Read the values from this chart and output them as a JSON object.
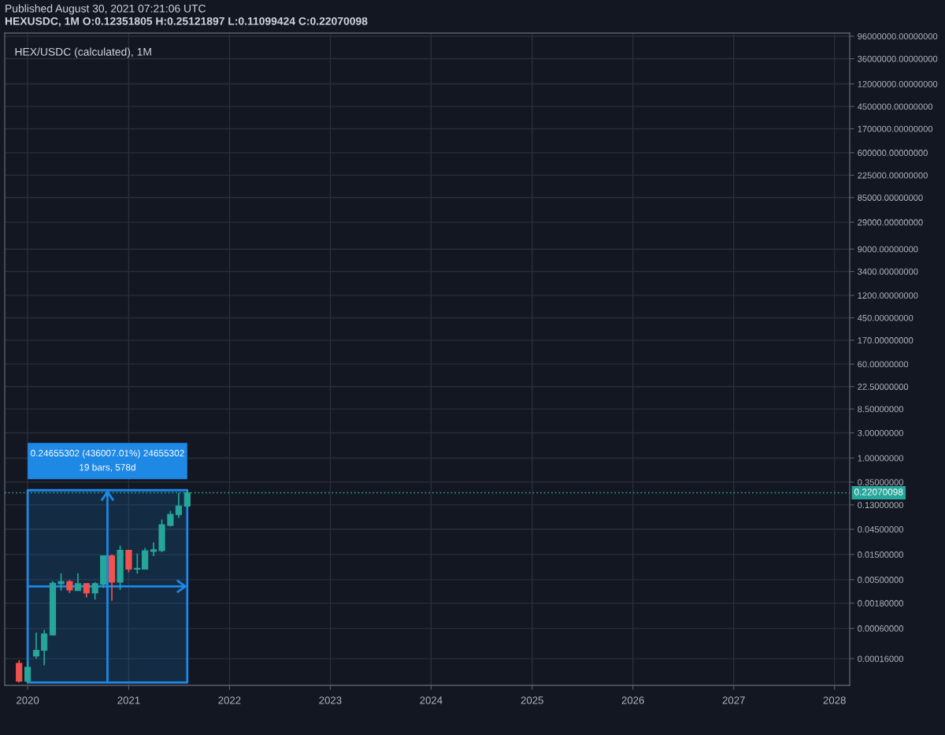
{
  "chart_data": {
    "type": "candlestick",
    "title": "HEX/USDC (calculated), 1M",
    "annotations": [
      "Published August 30, 2021 07:21:06 UTC",
      "HEXUSDC, 1M O:0.12351805 H:0.25121897 L:0.11099424 C:0.22070098",
      "0.24655302 (436007.01%) 24655302"
    ],
    "x": [
      "2019-12",
      "2020-01",
      "2020-02",
      "2020-03",
      "2020-04",
      "2020-05",
      "2020-06",
      "2020-07",
      "2020-08",
      "2020-09",
      "2020-10",
      "2020-11",
      "2020-12",
      "2021-01",
      "2021-02",
      "2021-03",
      "2021-04",
      "2021-05",
      "2021-06",
      "2021-07",
      "2021-08"
    ],
    "ohlc": [
      [
        0.00013,
        0.00015,
        5.65e-05,
        6e-05
      ],
      [
        6e-05,
        0.00014,
        5.7e-05,
        0.00011
      ],
      [
        0.00018,
        0.0005,
        0.00016,
        0.00023
      ],
      [
        0.00023,
        0.00056,
        0.00012,
        0.00047
      ],
      [
        0.00045,
        0.0047,
        0.00044,
        0.0043
      ],
      [
        0.0042,
        0.0066,
        0.0031,
        0.0046
      ],
      [
        0.0046,
        0.0049,
        0.0028,
        0.0032
      ],
      [
        0.0031,
        0.0066,
        0.0031,
        0.0042
      ],
      [
        0.0042,
        0.0043,
        0.0023,
        0.0028
      ],
      [
        0.0028,
        0.0045,
        0.0021,
        0.0042
      ],
      [
        0.0041,
        0.0142,
        0.0035,
        0.0141
      ],
      [
        0.0141,
        0.0151,
        0.002,
        0.0045
      ],
      [
        0.0045,
        0.022,
        0.0032,
        0.018
      ],
      [
        0.018,
        0.018,
        0.0069,
        0.0079
      ],
      [
        0.0079,
        0.0156,
        0.0065,
        0.0082
      ],
      [
        0.0079,
        0.02,
        0.0079,
        0.0176
      ],
      [
        0.0172,
        0.0253,
        0.0139,
        0.0184
      ],
      [
        0.0178,
        0.069,
        0.0166,
        0.0547
      ],
      [
        0.053,
        0.1,
        0.0505,
        0.0856
      ],
      [
        0.085,
        0.22,
        0.0736,
        0.1235
      ],
      [
        0.12351805,
        0.25121897,
        0.11099424,
        0.22070098
      ]
    ],
    "colors": [
      "#ef5350",
      "#26a69a",
      "#26a69a",
      "#26a69a",
      "#26a69a",
      "#26a69a",
      "#ef5350",
      "#26a69a",
      "#ef5350",
      "#26a69a",
      "#26a69a",
      "#ef5350",
      "#26a69a",
      "#ef5350",
      "#26a69a",
      "#26a69a",
      "#26a69a",
      "#26a69a",
      "#26a69a",
      "#26a69a",
      "#26a69a"
    ],
    "log": "y",
    "xlim": [
      "2019-10-10",
      "2028-02-25"
    ],
    "xticks": [
      "2020",
      "2021",
      "2022",
      "2023",
      "2024",
      "2025",
      "2026",
      "2027",
      "2028"
    ],
    "ylim": [
      5e-05,
      110000000
    ],
    "yticks": [
      {
        "value": 0.00016,
        "label": "0.00016000"
      },
      {
        "value": 0.0006,
        "label": "0.00060000"
      },
      {
        "value": 0.0018,
        "label": "0.00180000"
      },
      {
        "value": 0.005,
        "label": "0.00500000"
      },
      {
        "value": 0.015,
        "label": "0.01500000"
      },
      {
        "value": 0.045,
        "label": "0.04500000"
      },
      {
        "value": 0.13,
        "label": "0.13000000"
      },
      {
        "value": 0.35,
        "label": "0.35000000"
      },
      {
        "value": 1,
        "label": "1.00000000"
      },
      {
        "value": 3,
        "label": "3.00000000"
      },
      {
        "value": 8.5,
        "label": "8.50000000"
      },
      {
        "value": 22.5,
        "label": "22.50000000"
      },
      {
        "value": 60,
        "label": "60.00000000"
      },
      {
        "value": 170,
        "label": "170.00000000"
      },
      {
        "value": 450,
        "label": "450.00000000"
      },
      {
        "value": 1200,
        "label": "1200.00000000"
      },
      {
        "value": 3400,
        "label": "3400.00000000"
      },
      {
        "value": 9000,
        "label": "9000.00000000"
      },
      {
        "value": 29000,
        "label": "29000.00000000"
      },
      {
        "value": 85000,
        "label": "85000.00000000"
      },
      {
        "value": 225000,
        "label": "225000.00000000"
      },
      {
        "value": 600000,
        "label": "600000.00000000"
      },
      {
        "value": 1700000,
        "label": "1700000.00000000"
      },
      {
        "value": 4500000,
        "label": "4500000.00000000"
      },
      {
        "value": 12000000,
        "label": "12000000.00000000"
      },
      {
        "value": 36000000,
        "label": "36000000.00000000"
      },
      {
        "value": 96000000,
        "label": "96000000.00000000"
      }
    ],
    "grid": true,
    "ref_lines": [
      {
        "axis": "y",
        "value": 0.22070098,
        "label": "0.22070098",
        "color": "#26a69a",
        "line_style": "dotted"
      }
    ],
    "bands": [
      {
        "axis": "y",
        "from": 5.65e-05,
        "to": 0.2466,
        "color": "#1e88e5"
      },
      {
        "axis": "x",
        "from": "2020-01-01",
        "to": "2021-08-01",
        "label": "19 bars, 578d",
        "color": "#1e88e5"
      }
    ]
  }
}
